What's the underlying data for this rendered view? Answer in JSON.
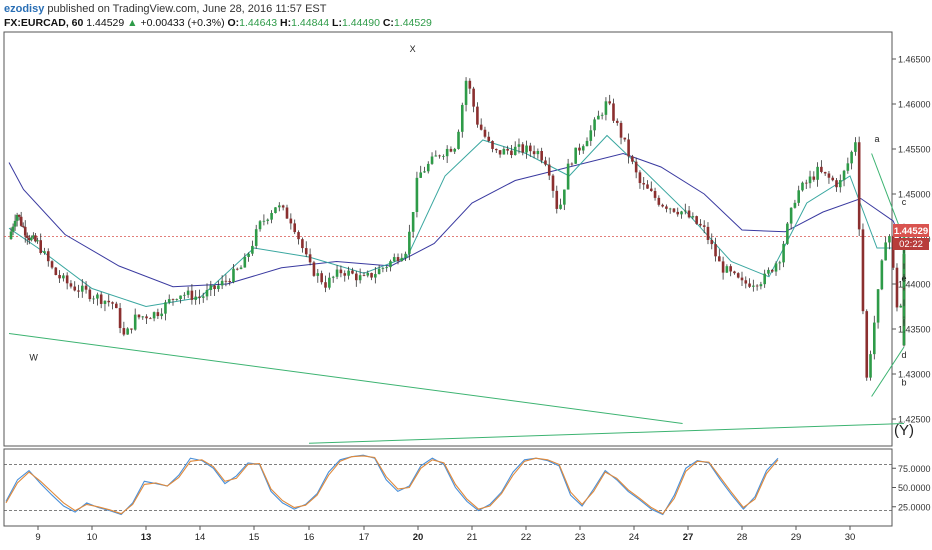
{
  "header": {
    "user": "ezodisy",
    "published": "published on TradingView.com, June 28, 2016 11:57 EST",
    "symbol": "FX:EURCAD, 60",
    "last": "1.44529",
    "change_arrow": "▲",
    "change": "+0.00433 (+0.3%)",
    "o_label": "O:",
    "o_value": "1.44643",
    "h_label": "H:",
    "h_value": "1.44844",
    "l_label": "L:",
    "l_value": "1.44490",
    "c_label": "C:",
    "c_value": "1.44529"
  },
  "price_badge": {
    "price": "1.44529",
    "countdown": "02:22"
  },
  "colors": {
    "up": "#2e9b48",
    "down": "#8b2f2f",
    "ma_fast": "#3aa7a0",
    "ma_slow": "#3a3aa0",
    "trend": "#3cb371",
    "stoch_k": "#4a90d9",
    "stoch_d": "#e08a3c",
    "price_line": "#d9534f"
  },
  "chart_data": [
    {
      "type": "candlestick",
      "xlabel": "",
      "ylabel": "",
      "ylim": [
        1.422,
        1.468
      ],
      "y_ticks": [
        "1.46500",
        "1.46000",
        "1.45500",
        "1.45000",
        "1.44500",
        "1.44000",
        "1.43500",
        "1.43000",
        "1.42500"
      ],
      "x_ticks": [
        "9",
        "10",
        "13",
        "14",
        "15",
        "16",
        "17",
        "20",
        "21",
        "22",
        "23",
        "24",
        "27",
        "28",
        "29",
        "30"
      ],
      "bold_x_ticks": [
        "13",
        "20",
        "27"
      ],
      "current_price": 1.44529,
      "close_path": [
        {
          "d": 8.0,
          "v": 1.445
        },
        {
          "d": 8.25,
          "v": 1.448
        },
        {
          "d": 8.5,
          "v": 1.4462
        },
        {
          "d": 8.75,
          "v": 1.445
        },
        {
          "d": 9.0,
          "v": 1.4445
        },
        {
          "d": 9.3,
          "v": 1.4412
        },
        {
          "d": 9.6,
          "v": 1.4398
        },
        {
          "d": 10.0,
          "v": 1.4388
        },
        {
          "d": 10.4,
          "v": 1.4378
        },
        {
          "d": 10.6,
          "v": 1.434
        },
        {
          "d": 10.8,
          "v": 1.4362
        },
        {
          "d": 11.2,
          "v": 1.4368
        },
        {
          "d": 11.6,
          "v": 1.439
        },
        {
          "d": 12.0,
          "v": 1.4385
        },
        {
          "d": 12.4,
          "v": 1.44
        },
        {
          "d": 12.8,
          "v": 1.442
        },
        {
          "d": 13.1,
          "v": 1.4465
        },
        {
          "d": 13.4,
          "v": 1.4488
        },
        {
          "d": 13.7,
          "v": 1.447
        },
        {
          "d": 14.0,
          "v": 1.442
        },
        {
          "d": 14.3,
          "v": 1.44
        },
        {
          "d": 14.6,
          "v": 1.4415
        },
        {
          "d": 15.0,
          "v": 1.4405
        },
        {
          "d": 15.4,
          "v": 1.442
        },
        {
          "d": 15.8,
          "v": 1.444
        },
        {
          "d": 16.0,
          "v": 1.452
        },
        {
          "d": 16.4,
          "v": 1.4545
        },
        {
          "d": 16.7,
          "v": 1.4555
        },
        {
          "d": 16.9,
          "v": 1.463
        },
        {
          "d": 17.1,
          "v": 1.458
        },
        {
          "d": 17.4,
          "v": 1.4545
        },
        {
          "d": 17.8,
          "v": 1.455
        },
        {
          "d": 18.2,
          "v": 1.4548
        },
        {
          "d": 18.4,
          "v": 1.4535
        },
        {
          "d": 18.6,
          "v": 1.4478
        },
        {
          "d": 18.8,
          "v": 1.4535
        },
        {
          "d": 19.2,
          "v": 1.457
        },
        {
          "d": 19.5,
          "v": 1.4602
        },
        {
          "d": 19.8,
          "v": 1.456
        },
        {
          "d": 20.1,
          "v": 1.4512
        },
        {
          "d": 20.5,
          "v": 1.449
        },
        {
          "d": 20.9,
          "v": 1.448
        },
        {
          "d": 21.3,
          "v": 1.446
        },
        {
          "d": 21.6,
          "v": 1.442
        },
        {
          "d": 22.0,
          "v": 1.44
        },
        {
          "d": 22.4,
          "v": 1.4405
        },
        {
          "d": 22.7,
          "v": 1.443
        },
        {
          "d": 23.0,
          "v": 1.45
        },
        {
          "d": 23.4,
          "v": 1.4525
        },
        {
          "d": 23.8,
          "v": 1.451
        },
        {
          "d": 24.0,
          "v": 1.454
        },
        {
          "d": 24.1,
          "v": 1.456
        },
        {
          "d": 24.3,
          "v": 1.429
        },
        {
          "d": 24.5,
          "v": 1.438
        },
        {
          "d": 24.7,
          "v": 1.447
        },
        {
          "d": 24.9,
          "v": 1.436
        },
        {
          "d": 25.1,
          "v": 1.444
        },
        {
          "d": 25.4,
          "v": 1.44
        },
        {
          "d": 25.7,
          "v": 1.442
        },
        {
          "d": 26.0,
          "v": 1.439
        },
        {
          "d": 26.2,
          "v": 1.433
        },
        {
          "d": 26.4,
          "v": 1.4405
        },
        {
          "d": 26.6,
          "v": 1.443
        },
        {
          "d": 26.8,
          "v": 1.4418
        },
        {
          "d": 27.0,
          "v": 1.441
        },
        {
          "d": 27.2,
          "v": 1.4395
        },
        {
          "d": 27.4,
          "v": 1.436
        },
        {
          "d": 27.6,
          "v": 1.439
        },
        {
          "d": 27.8,
          "v": 1.442
        },
        {
          "d": 28.0,
          "v": 1.444
        },
        {
          "d": 28.1,
          "v": 1.4465
        },
        {
          "d": 28.2,
          "v": 1.4453
        }
      ],
      "ma_fast_path": [
        {
          "d": 8.0,
          "v": 1.4462
        },
        {
          "d": 9.0,
          "v": 1.444
        },
        {
          "d": 10.0,
          "v": 1.4395
        },
        {
          "d": 11.0,
          "v": 1.4375
        },
        {
          "d": 12.0,
          "v": 1.4385
        },
        {
          "d": 13.0,
          "v": 1.444
        },
        {
          "d": 14.0,
          "v": 1.443
        },
        {
          "d": 15.0,
          "v": 1.4412
        },
        {
          "d": 15.8,
          "v": 1.443
        },
        {
          "d": 16.5,
          "v": 1.452
        },
        {
          "d": 17.2,
          "v": 1.456
        },
        {
          "d": 18.0,
          "v": 1.4545
        },
        {
          "d": 18.8,
          "v": 1.452
        },
        {
          "d": 19.5,
          "v": 1.4565
        },
        {
          "d": 20.2,
          "v": 1.4525
        },
        {
          "d": 21.0,
          "v": 1.4478
        },
        {
          "d": 21.8,
          "v": 1.4425
        },
        {
          "d": 22.5,
          "v": 1.4408
        },
        {
          "d": 23.2,
          "v": 1.449
        },
        {
          "d": 24.0,
          "v": 1.452
        },
        {
          "d": 24.5,
          "v": 1.444
        },
        {
          "d": 25.0,
          "v": 1.444
        },
        {
          "d": 25.6,
          "v": 1.4415
        },
        {
          "d": 26.3,
          "v": 1.4395
        },
        {
          "d": 27.0,
          "v": 1.441
        },
        {
          "d": 27.6,
          "v": 1.4395
        },
        {
          "d": 28.2,
          "v": 1.443
        }
      ],
      "ma_slow_path": [
        {
          "d": 7.9,
          "v": 1.4535
        },
        {
          "d": 8.5,
          "v": 1.4505
        },
        {
          "d": 9.5,
          "v": 1.4455
        },
        {
          "d": 10.5,
          "v": 1.442
        },
        {
          "d": 11.5,
          "v": 1.4397
        },
        {
          "d": 12.5,
          "v": 1.44
        },
        {
          "d": 13.5,
          "v": 1.4418
        },
        {
          "d": 14.5,
          "v": 1.4425
        },
        {
          "d": 15.5,
          "v": 1.442
        },
        {
          "d": 16.3,
          "v": 1.4445
        },
        {
          "d": 17.0,
          "v": 1.449
        },
        {
          "d": 17.8,
          "v": 1.4515
        },
        {
          "d": 18.8,
          "v": 1.453
        },
        {
          "d": 19.8,
          "v": 1.4545
        },
        {
          "d": 20.5,
          "v": 1.453
        },
        {
          "d": 21.3,
          "v": 1.45
        },
        {
          "d": 22.0,
          "v": 1.446
        },
        {
          "d": 22.8,
          "v": 1.4458
        },
        {
          "d": 23.5,
          "v": 1.448
        },
        {
          "d": 24.2,
          "v": 1.4495
        },
        {
          "d": 24.8,
          "v": 1.447
        },
        {
          "d": 25.5,
          "v": 1.444
        },
        {
          "d": 26.2,
          "v": 1.4425
        },
        {
          "d": 27.0,
          "v": 1.4415
        },
        {
          "d": 27.6,
          "v": 1.4405
        },
        {
          "d": 28.2,
          "v": 1.4412
        }
      ],
      "trendlines": [
        {
          "name": "w-x-lower",
          "from": {
            "d": 7.9,
            "v": 1.4345
          },
          "to": {
            "d": 20.9,
            "v": 1.4245
          }
        },
        {
          "name": "a-c-upper",
          "from": {
            "d": 24.4,
            "v": 1.4545
          },
          "to": {
            "d": 30.0,
            "v": 1.445
          }
        },
        {
          "name": "b-d-lower",
          "from": {
            "d": 24.4,
            "v": 1.4275
          },
          "to": {
            "d": 30.0,
            "v": 1.433
          }
        },
        {
          "name": "y-base",
          "from": {
            "d": 14.0,
            "v": 1.4223
          },
          "to": {
            "d": 30.7,
            "v": 1.4245
          }
        }
      ],
      "annotations": [
        {
          "text": "X",
          "d": 15.9,
          "v": 1.4658
        },
        {
          "text": "W",
          "d": 8.85,
          "v": 1.4315
        },
        {
          "text": "a",
          "d": 24.5,
          "v": 1.4558
        },
        {
          "text": "b",
          "d": 26.9,
          "v": 1.4287
        },
        {
          "text": "c",
          "d": 28.0,
          "v": 1.4488
        },
        {
          "text": "d",
          "d": 28.5,
          "v": 1.4318
        },
        {
          "text": "e",
          "d": 30.3,
          "v": 1.4403
        },
        {
          "text": "(Y)",
          "d": 27.0,
          "v": 1.4232
        }
      ]
    },
    {
      "type": "line",
      "xlabel": "",
      "ylabel": "",
      "ylim": [
        0,
        100
      ],
      "y_ticks": [
        "75.0000",
        "50.0000",
        "25.0000"
      ],
      "levels": [
        80,
        20
      ],
      "series": [
        {
          "name": "",
          "values": [
            32,
            60,
            72,
            55,
            40,
            26,
            18,
            30,
            24,
            20,
            15,
            30,
            58,
            55,
            52,
            66,
            88,
            85,
            75,
            55,
            65,
            82,
            80,
            45,
            30,
            22,
            28,
            42,
            70,
            86,
            90,
            92,
            88,
            60,
            45,
            52,
            78,
            88,
            80,
            50,
            32,
            20,
            28,
            44,
            70,
            86,
            88,
            85,
            78,
            40,
            26,
            48,
            72,
            60,
            45,
            34,
            22,
            15,
            40,
            75,
            85,
            82,
            60,
            40,
            22,
            38,
            72,
            88
          ]
        },
        {
          "name": "",
          "values": [
            30,
            56,
            70,
            58,
            44,
            30,
            20,
            28,
            25,
            21,
            16,
            28,
            54,
            56,
            52,
            63,
            84,
            86,
            77,
            58,
            62,
            80,
            81,
            48,
            33,
            24,
            27,
            40,
            66,
            84,
            90,
            91,
            89,
            64,
            48,
            50,
            75,
            86,
            82,
            54,
            35,
            22,
            26,
            42,
            66,
            84,
            88,
            86,
            80,
            44,
            28,
            45,
            70,
            62,
            47,
            36,
            24,
            16,
            36,
            71,
            84,
            83,
            63,
            43,
            24,
            35,
            68,
            86
          ]
        }
      ]
    }
  ]
}
